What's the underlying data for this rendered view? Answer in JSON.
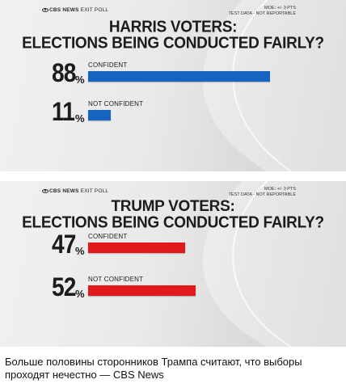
{
  "chart_data": [
    {
      "type": "bar",
      "orientation": "horizontal",
      "brand": "CBS NEWS",
      "brand_sub": "EXIT POLL",
      "note_line1": "MOE: +/- 3 PTS",
      "note_line2": "TEST DATA - NOT REPORTABLE",
      "title_line1": "HARRIS VOTERS:",
      "title_line2": "ELECTIONS BEING CONDUCTED FAIRLY?",
      "categories": [
        "CONFIDENT",
        "NOT CONFIDENT"
      ],
      "values": [
        88,
        11
      ],
      "value_labels": [
        "88",
        "11"
      ],
      "unit": "%",
      "xlim": [
        0,
        100
      ],
      "bar_color": "#1565c0"
    },
    {
      "type": "bar",
      "orientation": "horizontal",
      "brand": "CBS NEWS",
      "brand_sub": "EXIT POLL",
      "note_line1": "MOE: +/- 3 PTS",
      "note_line2": "TEST DATA - NOT REPORTABLE",
      "title_line1": "TRUMP VOTERS:",
      "title_line2": "ELECTIONS BEING CONDUCTED FAIRLY?",
      "categories": [
        "CONFIDENT",
        "NOT CONFIDENT"
      ],
      "values": [
        47,
        52
      ],
      "value_labels": [
        "47",
        "52"
      ],
      "unit": "%",
      "xlim": [
        0,
        100
      ],
      "bar_color": "#e01a1a"
    }
  ],
  "caption": "Больше половины сторонников Трампа считают, что выборы проходят нечестно — CBS News"
}
